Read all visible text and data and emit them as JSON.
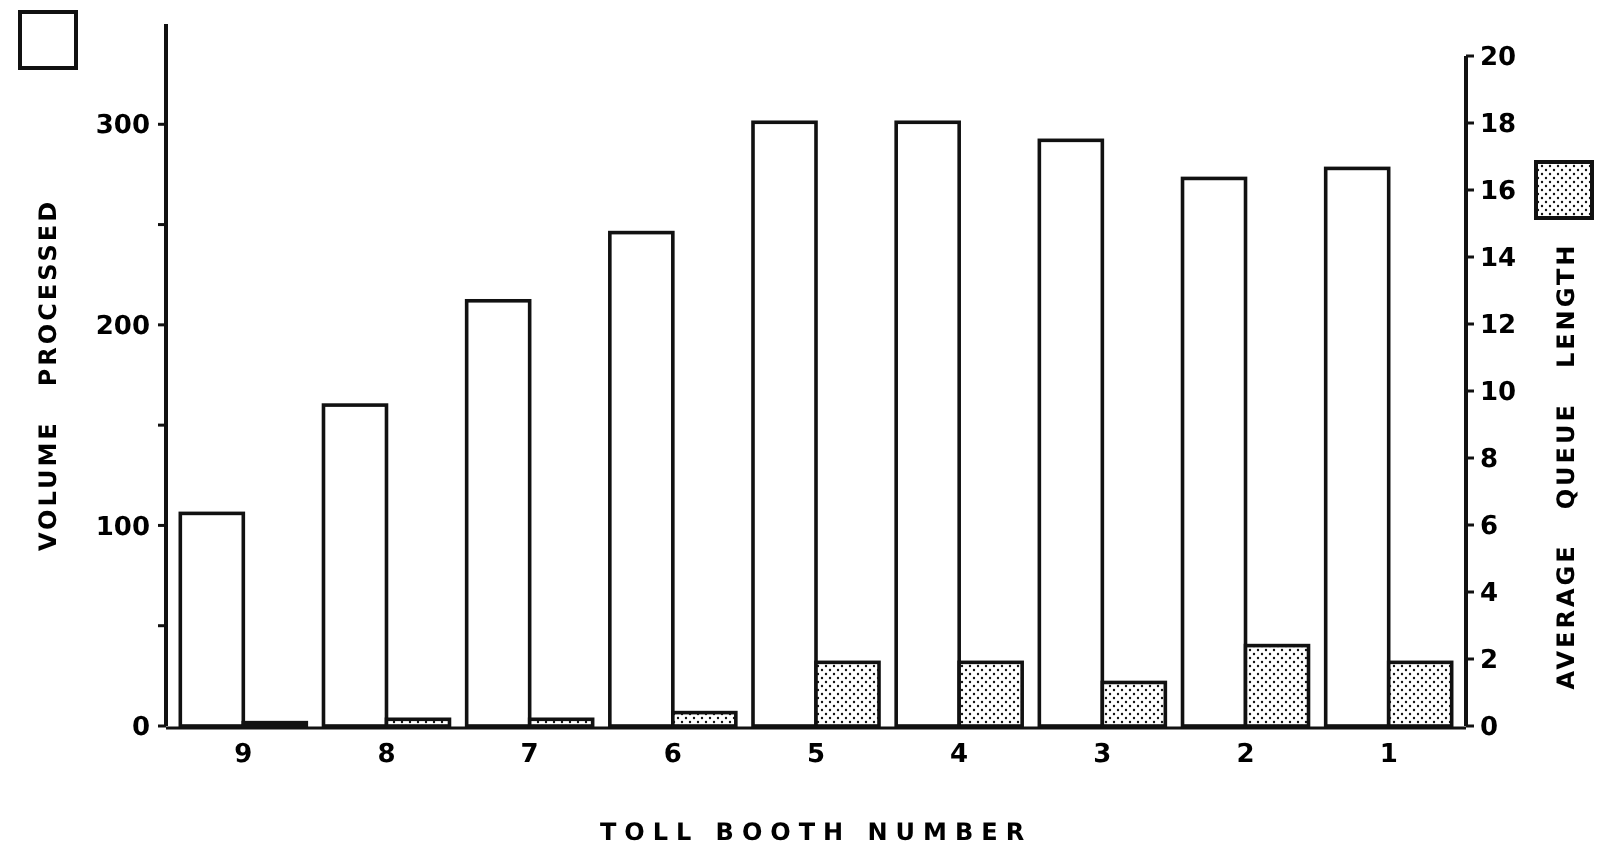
{
  "chart_data": {
    "type": "bar",
    "xlabel": "TOLL BOOTH NUMBER",
    "ylabel": "VOLUME   PROCESSED",
    "y2label": "AVERAGE   QUEUE   LENGTH",
    "categories": [
      "9",
      "8",
      "7",
      "6",
      "5",
      "4",
      "3",
      "2",
      "1"
    ],
    "series": [
      {
        "color": "#ffffff",
        "values": [
          106,
          160,
          212,
          246,
          301,
          301,
          292,
          273,
          278
        ]
      },
      {
        "color": "#111111",
        "axis": "y2",
        "values": [
          0.1,
          0.2,
          0.2,
          0.4,
          1.9,
          1.9,
          1.3,
          2.4,
          1.9
        ]
      }
    ],
    "ylim": [
      0,
      350
    ],
    "yticks": [
      0,
      {
        "value": 50,
        "label": null
      },
      100,
      {
        "value": 150,
        "label": null
      },
      200,
      {
        "value": 250,
        "label": null
      },
      300
    ],
    "y2lim": [
      0,
      20
    ],
    "y2ticks": [
      0,
      2,
      4,
      6,
      8,
      10,
      12,
      14,
      16,
      18,
      20
    ],
    "grid": false
  }
}
